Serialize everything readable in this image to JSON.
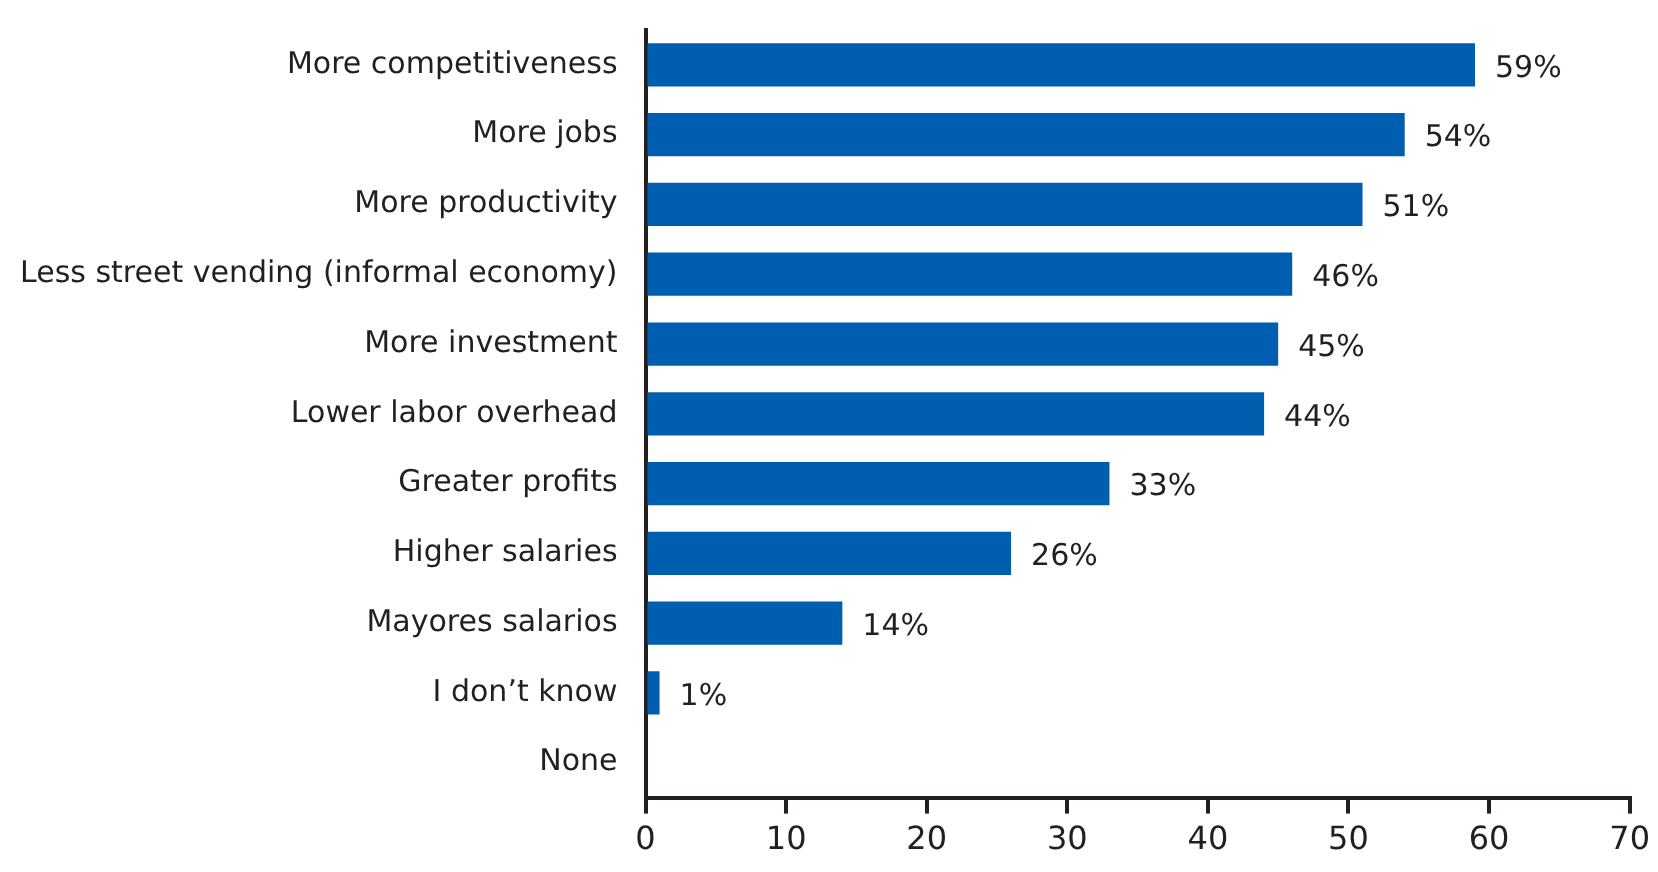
{
  "chart_data": {
    "type": "bar",
    "orientation": "horizontal",
    "categories": [
      "More competitiveness",
      "More jobs",
      "More productivity",
      "Less street vending (informal economy)",
      "More investment",
      "Lower labor overhead",
      "Greater profits",
      "Higher salaries",
      "Mayores salarios",
      "I don’t know",
      "None"
    ],
    "values": [
      59,
      54,
      51,
      46,
      45,
      44,
      33,
      26,
      14,
      1,
      0
    ],
    "value_labels": [
      "59%",
      "54%",
      "51%",
      "46%",
      "45%",
      "44%",
      "33%",
      "26%",
      "14%",
      "1%",
      null
    ],
    "color": "#005eb0",
    "xlim": [
      0,
      70
    ],
    "xticks": [
      0,
      10,
      20,
      30,
      40,
      50,
      60,
      70
    ],
    "grid": false,
    "legend": false
  }
}
